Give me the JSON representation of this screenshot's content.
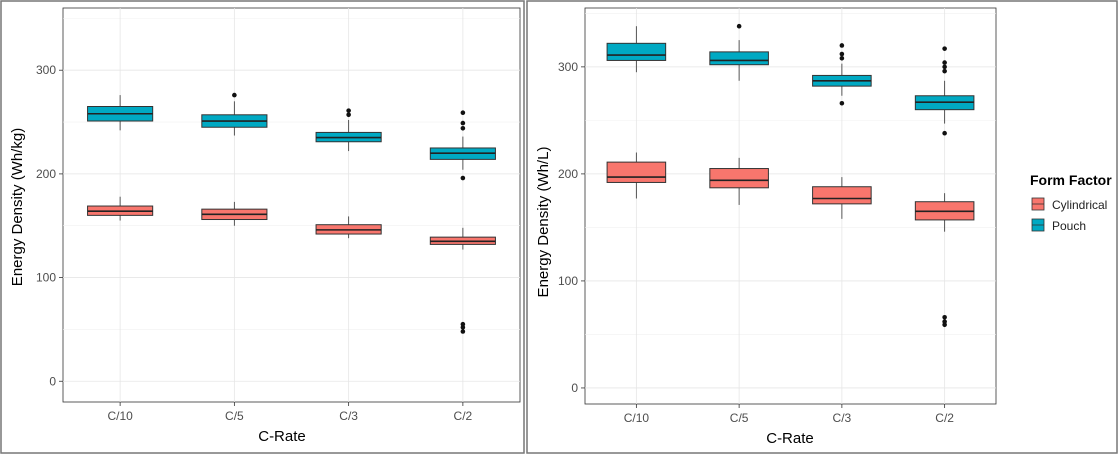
{
  "chart_data": [
    {
      "type": "boxplot",
      "ylabel": "Energy Density (Wh/kg)",
      "xlabel": "C-Rate",
      "ylim": [
        -20,
        360
      ],
      "yticks": [
        0,
        100,
        200,
        300
      ],
      "categories": [
        "C/10",
        "C/5",
        "C/3",
        "C/2"
      ],
      "series": [
        {
          "name": "Pouch",
          "boxes": [
            {
              "min": 242,
              "q1": 251,
              "median": 258,
              "q3": 265,
              "max": 276,
              "outliers": []
            },
            {
              "min": 237,
              "q1": 245,
              "median": 251,
              "q3": 257,
              "max": 270,
              "outliers": [
                276
              ]
            },
            {
              "min": 222,
              "q1": 231,
              "median": 235,
              "q3": 240,
              "max": 252,
              "outliers": [
                257,
                261
              ]
            },
            {
              "min": 204,
              "q1": 214,
              "median": 220,
              "q3": 225,
              "max": 236,
              "outliers": [
                196,
                244,
                249,
                259
              ]
            }
          ]
        },
        {
          "name": "Cylindrical",
          "boxes": [
            {
              "min": 155,
              "q1": 160,
              "median": 164,
              "q3": 169,
              "max": 178,
              "outliers": []
            },
            {
              "min": 150,
              "q1": 156,
              "median": 161,
              "q3": 166,
              "max": 173,
              "outliers": []
            },
            {
              "min": 138,
              "q1": 142,
              "median": 146,
              "q3": 151,
              "max": 159,
              "outliers": []
            },
            {
              "min": 127,
              "q1": 132,
              "median": 135,
              "q3": 139,
              "max": 148,
              "outliers": [
                48,
                52,
                55
              ]
            }
          ]
        }
      ]
    },
    {
      "type": "boxplot",
      "ylabel": "Energy Density (Wh/L)",
      "xlabel": "C-Rate",
      "ylim": [
        -15,
        355
      ],
      "yticks": [
        0,
        100,
        200,
        300
      ],
      "categories": [
        "C/10",
        "C/5",
        "C/3",
        "C/2"
      ],
      "series": [
        {
          "name": "Pouch",
          "boxes": [
            {
              "min": 295,
              "q1": 306,
              "median": 311,
              "q3": 322,
              "max": 338,
              "outliers": []
            },
            {
              "min": 287,
              "q1": 302,
              "median": 306,
              "q3": 314,
              "max": 325,
              "outliers": [
                338
              ]
            },
            {
              "min": 273,
              "q1": 282,
              "median": 287,
              "q3": 292,
              "max": 303,
              "outliers": [
                266,
                308,
                312,
                320
              ]
            },
            {
              "min": 247,
              "q1": 260,
              "median": 267,
              "q3": 273,
              "max": 287,
              "outliers": [
                238,
                296,
                300,
                304,
                317
              ]
            }
          ]
        },
        {
          "name": "Cylindrical",
          "boxes": [
            {
              "min": 177,
              "q1": 192,
              "median": 197,
              "q3": 211,
              "max": 220,
              "outliers": []
            },
            {
              "min": 171,
              "q1": 187,
              "median": 194,
              "q3": 205,
              "max": 215,
              "outliers": []
            },
            {
              "min": 158,
              "q1": 172,
              "median": 177,
              "q3": 188,
              "max": 197,
              "outliers": []
            },
            {
              "min": 146,
              "q1": 157,
              "median": 165,
              "q3": 174,
              "max": 182,
              "outliers": [
                59,
                62,
                66
              ]
            }
          ]
        }
      ]
    }
  ],
  "legend": {
    "title": "Form Factor",
    "items": [
      {
        "label": "Cylindrical",
        "color": "#F8766D"
      },
      {
        "label": "Pouch",
        "color": "#00A9C3"
      }
    ]
  },
  "colors": {
    "Pouch": "#00A9C3",
    "Cylindrical": "#F8766D"
  }
}
